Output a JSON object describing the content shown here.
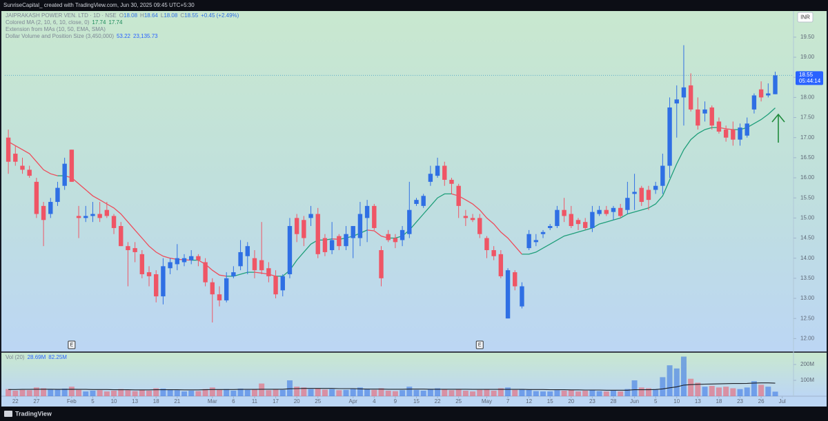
{
  "header": {
    "attribution": "SunriseCapital_ created with TradingView.com, Jun 30, 2025 09:45 UTC+5:30",
    "brand": "TradingView"
  },
  "chart_data": {
    "type": "candlestick",
    "symbol": "JAIPRAKASH POWER VEN. LTD · 1D · NSE",
    "ohlc_legend": [
      {
        "key": "O",
        "value": "18.08"
      },
      {
        "key": "H",
        "value": "18.64"
      },
      {
        "key": "L",
        "value": "18.08"
      },
      {
        "key": "C",
        "value": "18.55"
      }
    ],
    "change": "+0.45 (+2.49%)",
    "indicators": [
      {
        "name": "Colored MA (2, 10, 6, 10, close, 0)",
        "values": [
          "17.74",
          "17.74"
        ],
        "color": "#1b8a5a"
      },
      {
        "name": "Extension from MAs (10, 50, EMA, SMA)"
      },
      {
        "name": "Dollar Volume and Position Size (3,450,000)",
        "values": [
          "53.22",
          "23,135.73"
        ],
        "color": "#2962ff"
      }
    ],
    "currency": "INR",
    "last_price_label": "18.55",
    "countdown": "05:44:14",
    "up_color": "#2f6fe4",
    "down_color": "#ef5565",
    "open": [
      17.0,
      16.6,
      16.3,
      16.2,
      15.9,
      15.3,
      15.1,
      15.4,
      15.8,
      16.7,
      15.05,
      15.0,
      15.05,
      15.1,
      15.2,
      15.05,
      14.8,
      14.3,
      14.25,
      14.1,
      13.65,
      13.6,
      13.05,
      13.75,
      13.85,
      13.9,
      13.95,
      14.05,
      13.9,
      13.4,
      13.1,
      12.95,
      13.55,
      13.8,
      14.05,
      14.0,
      13.95,
      13.75,
      13.55,
      13.2,
      13.6,
      15.0,
      14.95,
      15.0,
      15.1,
      14.5,
      14.2,
      14.55,
      14.3,
      14.5,
      14.5,
      15.0,
      15.3,
      14.2,
      14.6,
      14.5,
      14.45,
      14.6,
      15.35,
      15.3,
      15.9,
      16.05,
      16.3,
      15.95,
      15.8,
      15.05,
      15.0,
      15.0,
      14.5,
      14.2,
      14.1,
      12.5,
      13.65,
      12.8,
      14.25,
      14.4,
      14.6,
      14.75,
      14.8,
      15.2,
      15.1,
      14.95,
      14.9,
      14.75,
      15.1,
      15.2,
      15.15,
      15.25,
      15.2,
      15.6,
      15.75,
      15.7,
      15.7,
      15.8,
      16.3,
      17.85,
      18.0,
      18.3,
      17.7,
      17.6,
      17.75,
      17.4,
      17.2,
      17.2,
      16.95,
      17.05,
      17.7,
      18.2,
      18.05,
      18.08
    ],
    "high": [
      17.2,
      16.8,
      16.5,
      16.3,
      16.0,
      15.4,
      15.5,
      15.9,
      16.5,
      16.7,
      15.3,
      15.3,
      15.4,
      15.4,
      15.4,
      15.1,
      14.9,
      14.4,
      14.4,
      14.2,
      13.8,
      13.7,
      14.0,
      14.0,
      14.35,
      14.1,
      14.2,
      14.1,
      14.0,
      13.5,
      13.3,
      13.65,
      13.8,
      14.45,
      14.4,
      14.2,
      14.9,
      13.9,
      13.7,
      13.6,
      15.0,
      15.1,
      15.05,
      15.3,
      15.25,
      14.6,
      14.9,
      14.6,
      14.8,
      14.8,
      15.4,
      15.45,
      15.35,
      14.3,
      14.7,
      14.6,
      14.8,
      15.9,
      15.5,
      15.6,
      16.3,
      16.5,
      16.4,
      16.0,
      15.85,
      15.2,
      15.1,
      15.1,
      14.55,
      14.3,
      14.2,
      13.75,
      13.7,
      13.4,
      14.7,
      14.6,
      14.7,
      14.85,
      15.3,
      15.5,
      15.3,
      15.0,
      15.0,
      15.3,
      15.3,
      15.3,
      15.3,
      15.35,
      15.9,
      16.1,
      15.8,
      15.8,
      15.9,
      16.6,
      18.0,
      18.3,
      19.3,
      18.6,
      18.0,
      17.9,
      17.8,
      17.5,
      17.3,
      17.4,
      17.35,
      17.5,
      18.1,
      18.4,
      18.35,
      18.64
    ],
    "low": [
      16.1,
      16.3,
      16.1,
      16.0,
      15.0,
      14.3,
      15.0,
      15.3,
      15.7,
      15.9,
      14.5,
      14.9,
      14.9,
      14.9,
      15.0,
      14.6,
      14.3,
      13.3,
      13.9,
      13.5,
      13.3,
      12.9,
      12.85,
      13.6,
      13.7,
      13.8,
      13.85,
      13.8,
      13.3,
      12.4,
      12.8,
      12.9,
      13.5,
      13.7,
      13.6,
      13.5,
      13.6,
      13.4,
      13.0,
      13.05,
      13.5,
      14.4,
      14.3,
      14.8,
      14.0,
      14.05,
      14.1,
      14.2,
      14.2,
      14.0,
      14.3,
      14.4,
      14.7,
      13.3,
      14.4,
      14.25,
      14.3,
      14.5,
      15.3,
      15.25,
      15.8,
      16.0,
      15.8,
      15.6,
      15.0,
      14.8,
      14.9,
      14.5,
      14.0,
      13.95,
      13.5,
      12.5,
      13.2,
      12.75,
      14.2,
      14.3,
      14.5,
      14.7,
      14.75,
      14.9,
      14.75,
      14.7,
      14.7,
      14.65,
      15.05,
      15.05,
      14.95,
      15.0,
      15.1,
      15.2,
      15.3,
      15.2,
      15.6,
      15.6,
      16.0,
      17.0,
      17.3,
      17.65,
      17.2,
      17.4,
      17.2,
      17.1,
      16.9,
      16.8,
      16.8,
      17.0,
      17.6,
      17.9,
      18.0,
      18.08
    ],
    "close": [
      16.4,
      16.4,
      16.2,
      16.05,
      15.1,
      14.95,
      15.4,
      15.75,
      16.35,
      15.9,
      15.0,
      15.05,
      15.1,
      15.0,
      15.05,
      14.75,
      14.3,
      14.2,
      14.15,
      13.6,
      13.55,
      13.05,
      13.8,
      13.9,
      14.0,
      14.0,
      14.05,
      13.95,
      13.4,
      13.1,
      12.95,
      13.5,
      13.65,
      14.15,
      14.3,
      13.7,
      13.7,
      13.55,
      13.1,
      13.55,
      14.8,
      14.6,
      14.5,
      15.1,
      14.1,
      14.15,
      14.45,
      14.3,
      14.6,
      14.8,
      15.1,
      15.3,
      14.75,
      13.5,
      14.45,
      14.4,
      14.7,
      15.2,
      15.45,
      15.55,
      16.1,
      16.3,
      15.95,
      15.85,
      15.3,
      15.0,
      14.95,
      14.6,
      14.2,
      14.05,
      13.55,
      13.7,
      13.3,
      13.3,
      14.6,
      14.45,
      14.65,
      14.8,
      15.2,
      15.05,
      14.8,
      14.85,
      14.75,
      15.15,
      15.2,
      15.1,
      15.25,
      15.05,
      15.5,
      15.65,
      15.4,
      15.45,
      15.8,
      16.3,
      17.75,
      17.95,
      18.25,
      17.7,
      17.3,
      17.7,
      17.3,
      17.15,
      17.0,
      16.95,
      17.25,
      17.35,
      18.05,
      18.0,
      18.1,
      18.55
    ],
    "ma": {
      "up_color": "#1e9e7a",
      "down_color": "#ee4b5a",
      "values": [
        16.9,
        16.8,
        16.7,
        16.6,
        16.4,
        16.2,
        16.1,
        16.05,
        16.05,
        16.0,
        15.85,
        15.7,
        15.55,
        15.45,
        15.35,
        15.25,
        15.1,
        14.9,
        14.7,
        14.5,
        14.3,
        14.15,
        14.05,
        14.0,
        13.97,
        13.96,
        13.95,
        13.95,
        13.85,
        13.7,
        13.58,
        13.55,
        13.55,
        13.6,
        13.65,
        13.65,
        13.63,
        13.6,
        13.55,
        13.55,
        13.7,
        13.95,
        14.15,
        14.35,
        14.45,
        14.45,
        14.48,
        14.47,
        14.5,
        14.55,
        14.62,
        14.7,
        14.68,
        14.55,
        14.5,
        14.5,
        14.55,
        14.7,
        14.9,
        15.1,
        15.3,
        15.5,
        15.6,
        15.6,
        15.55,
        15.45,
        15.35,
        15.2,
        15.0,
        14.85,
        14.65,
        14.5,
        14.3,
        14.1,
        14.1,
        14.15,
        14.25,
        14.35,
        14.45,
        14.55,
        14.6,
        14.65,
        14.7,
        14.75,
        14.85,
        14.9,
        14.95,
        15.0,
        15.1,
        15.15,
        15.2,
        15.25,
        15.35,
        15.55,
        15.95,
        16.35,
        16.7,
        16.95,
        17.1,
        17.2,
        17.25,
        17.25,
        17.22,
        17.2,
        17.2,
        17.25,
        17.35,
        17.45,
        17.58,
        17.74
      ]
    },
    "ylim": [
      11.68,
      20.15
    ],
    "yticks": [
      {
        "value": 12,
        "label": "12.00"
      },
      {
        "value": 12.5,
        "label": "12.50"
      },
      {
        "value": 13,
        "label": "13.00"
      },
      {
        "value": 13.5,
        "label": "13.50"
      },
      {
        "value": 14,
        "label": "14.00"
      },
      {
        "value": 14.5,
        "label": "14.50"
      },
      {
        "value": 15,
        "label": "15.00"
      },
      {
        "value": 15.5,
        "label": "15.50"
      },
      {
        "value": 16,
        "label": "16.00"
      },
      {
        "value": 16.5,
        "label": "16.50"
      },
      {
        "value": 17,
        "label": "17.00"
      },
      {
        "value": 17.5,
        "label": "17.50"
      },
      {
        "value": 18,
        "label": "18.00"
      },
      {
        "value": 18.5,
        "label": "18.50"
      },
      {
        "value": 19,
        "label": "19.00"
      },
      {
        "value": 19.5,
        "label": "19.50"
      }
    ],
    "xlim": [
      -0.5,
      111.5
    ],
    "xticks": [
      {
        "value": 1,
        "label": "22"
      },
      {
        "value": 4,
        "label": "27"
      },
      {
        "value": 9,
        "label": "Feb"
      },
      {
        "value": 12,
        "label": "5"
      },
      {
        "value": 15,
        "label": "10"
      },
      {
        "value": 18,
        "label": "13"
      },
      {
        "value": 21,
        "label": "18"
      },
      {
        "value": 24,
        "label": "21"
      },
      {
        "value": 29,
        "label": "Mar"
      },
      {
        "value": 32,
        "label": "6"
      },
      {
        "value": 35,
        "label": "11"
      },
      {
        "value": 38,
        "label": "17"
      },
      {
        "value": 41,
        "label": "20"
      },
      {
        "value": 44,
        "label": "25"
      },
      {
        "value": 49,
        "label": "Apr"
      },
      {
        "value": 52,
        "label": "4"
      },
      {
        "value": 55,
        "label": "9"
      },
      {
        "value": 58,
        "label": "15"
      },
      {
        "value": 61,
        "label": "22"
      },
      {
        "value": 64,
        "label": "25"
      },
      {
        "value": 68,
        "label": "May"
      },
      {
        "value": 71,
        "label": "7"
      },
      {
        "value": 74,
        "label": "12"
      },
      {
        "value": 77,
        "label": "15"
      },
      {
        "value": 80,
        "label": "20"
      },
      {
        "value": 83,
        "label": "23"
      },
      {
        "value": 86,
        "label": "28"
      },
      {
        "value": 89,
        "label": "Jun"
      },
      {
        "value": 92,
        "label": "5"
      },
      {
        "value": 95,
        "label": "10"
      },
      {
        "value": 98,
        "label": "13"
      },
      {
        "value": 101,
        "label": "18"
      },
      {
        "value": 104,
        "label": "23"
      },
      {
        "value": 107,
        "label": "26"
      },
      {
        "value": 110,
        "label": "Jul"
      }
    ],
    "events": [
      {
        "x": 9,
        "label": "E"
      },
      {
        "x": 67,
        "label": "E"
      }
    ],
    "volume": {
      "title": "Vol (20)",
      "legend": [
        "28.69M",
        "82.25M"
      ],
      "values": [
        45,
        35,
        40,
        38,
        55,
        50,
        42,
        45,
        48,
        60,
        40,
        30,
        35,
        38,
        30,
        35,
        45,
        38,
        32,
        40,
        35,
        50,
        48,
        40,
        38,
        30,
        35,
        32,
        45,
        55,
        40,
        45,
        35,
        48,
        40,
        42,
        80,
        38,
        45,
        40,
        100,
        60,
        55,
        45,
        50,
        42,
        45,
        38,
        40,
        48,
        55,
        45,
        40,
        50,
        35,
        32,
        38,
        60,
        40,
        35,
        45,
        50,
        42,
        38,
        45,
        35,
        30,
        40,
        45,
        35,
        50,
        55,
        40,
        45,
        40,
        32,
        30,
        30,
        38,
        35,
        40,
        30,
        35,
        38,
        32,
        30,
        35,
        30,
        45,
        100,
        55,
        50,
        45,
        120,
        195,
        175,
        250,
        110,
        85,
        60,
        65,
        55,
        60,
        50,
        45,
        55,
        95,
        72,
        60,
        28.69
      ],
      "ma": [
        42,
        42,
        43,
        43,
        44,
        44,
        44,
        43,
        43,
        44,
        43,
        43,
        42,
        42,
        42,
        41,
        41,
        41,
        40,
        40,
        40,
        41,
        41,
        41,
        41,
        40,
        40,
        40,
        41,
        42,
        42,
        42,
        42,
        43,
        43,
        43,
        44,
        44,
        44,
        44,
        47,
        48,
        49,
        49,
        49,
        49,
        49,
        48,
        48,
        48,
        46,
        45,
        45,
        45,
        44,
        44,
        44,
        45,
        45,
        45,
        44,
        44,
        44,
        44,
        44,
        44,
        43,
        43,
        43,
        43,
        43,
        43,
        43,
        43,
        42,
        42,
        42,
        41,
        41,
        41,
        40,
        40,
        39,
        39,
        39,
        38,
        38,
        38,
        38,
        41,
        41,
        41,
        42,
        46,
        53,
        59,
        70,
        73,
        75,
        76,
        77,
        78,
        79,
        80,
        80,
        81,
        83,
        84,
        84,
        82.25
      ],
      "ylim": [
        0,
        274
      ],
      "yticks": [
        {
          "value": 100,
          "label": "100M"
        },
        {
          "value": 200,
          "label": "200M"
        }
      ]
    }
  }
}
